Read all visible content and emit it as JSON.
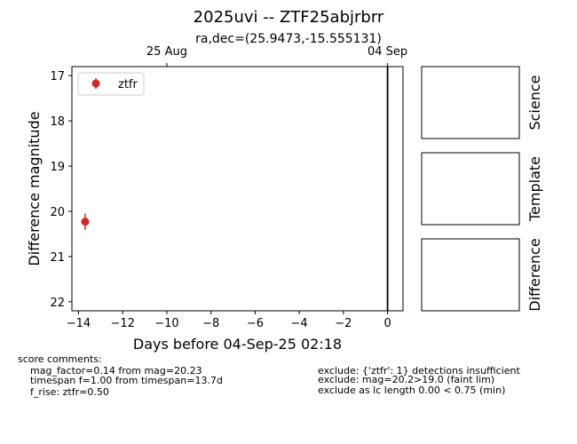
{
  "title": "2025uvi -- ZTF25abjrbrr",
  "subtitle": "ra,dec=(25.9473,-15.555131)",
  "chart_data": {
    "type": "scatter",
    "xlabel": "Days before 04-Sep-25 02:18",
    "ylabel": "Difference magnitude",
    "xlim": [
      -14.3,
      0.7
    ],
    "ylim": [
      22.2,
      16.8
    ],
    "y_inverted": true,
    "grid": false,
    "legend_placement": "top-left",
    "x_ticks": [
      -14,
      -12,
      -10,
      -8,
      -6,
      -4,
      -2,
      0
    ],
    "x_tick_labels": [
      "−14",
      "−12",
      "−10",
      "−8",
      "−6",
      "−4",
      "−2",
      "0"
    ],
    "y_ticks": [
      17,
      18,
      19,
      20,
      21,
      22
    ],
    "y_tick_labels": [
      "17",
      "18",
      "19",
      "20",
      "21",
      "22"
    ],
    "top_axis_ticks": [
      {
        "x": -10,
        "label": "25 Aug"
      },
      {
        "x": 0,
        "label": "04 Sep"
      }
    ],
    "vertical_lines": [
      0
    ],
    "series": [
      {
        "name": "ztfr",
        "color": "#d62728",
        "points": [
          {
            "x": -13.7,
            "y": 20.23,
            "yerr": 0.18
          }
        ]
      }
    ]
  },
  "panels": [
    {
      "label": "Science"
    },
    {
      "label": "Template"
    },
    {
      "label": "Difference"
    }
  ],
  "comments": {
    "header": "score comments:",
    "left": [
      "mag_factor=0.14 from mag=20.23",
      "timespan f=1.00 from timespan=13.7d",
      "f_rise: ztfr=0.50"
    ],
    "right": [
      "exclude: {'ztfr': 1} detections insufficient",
      "exclude: mag=20.2>19.0 (faint lim)",
      "exclude as lc length 0.00 < 0.75 (min)"
    ]
  }
}
